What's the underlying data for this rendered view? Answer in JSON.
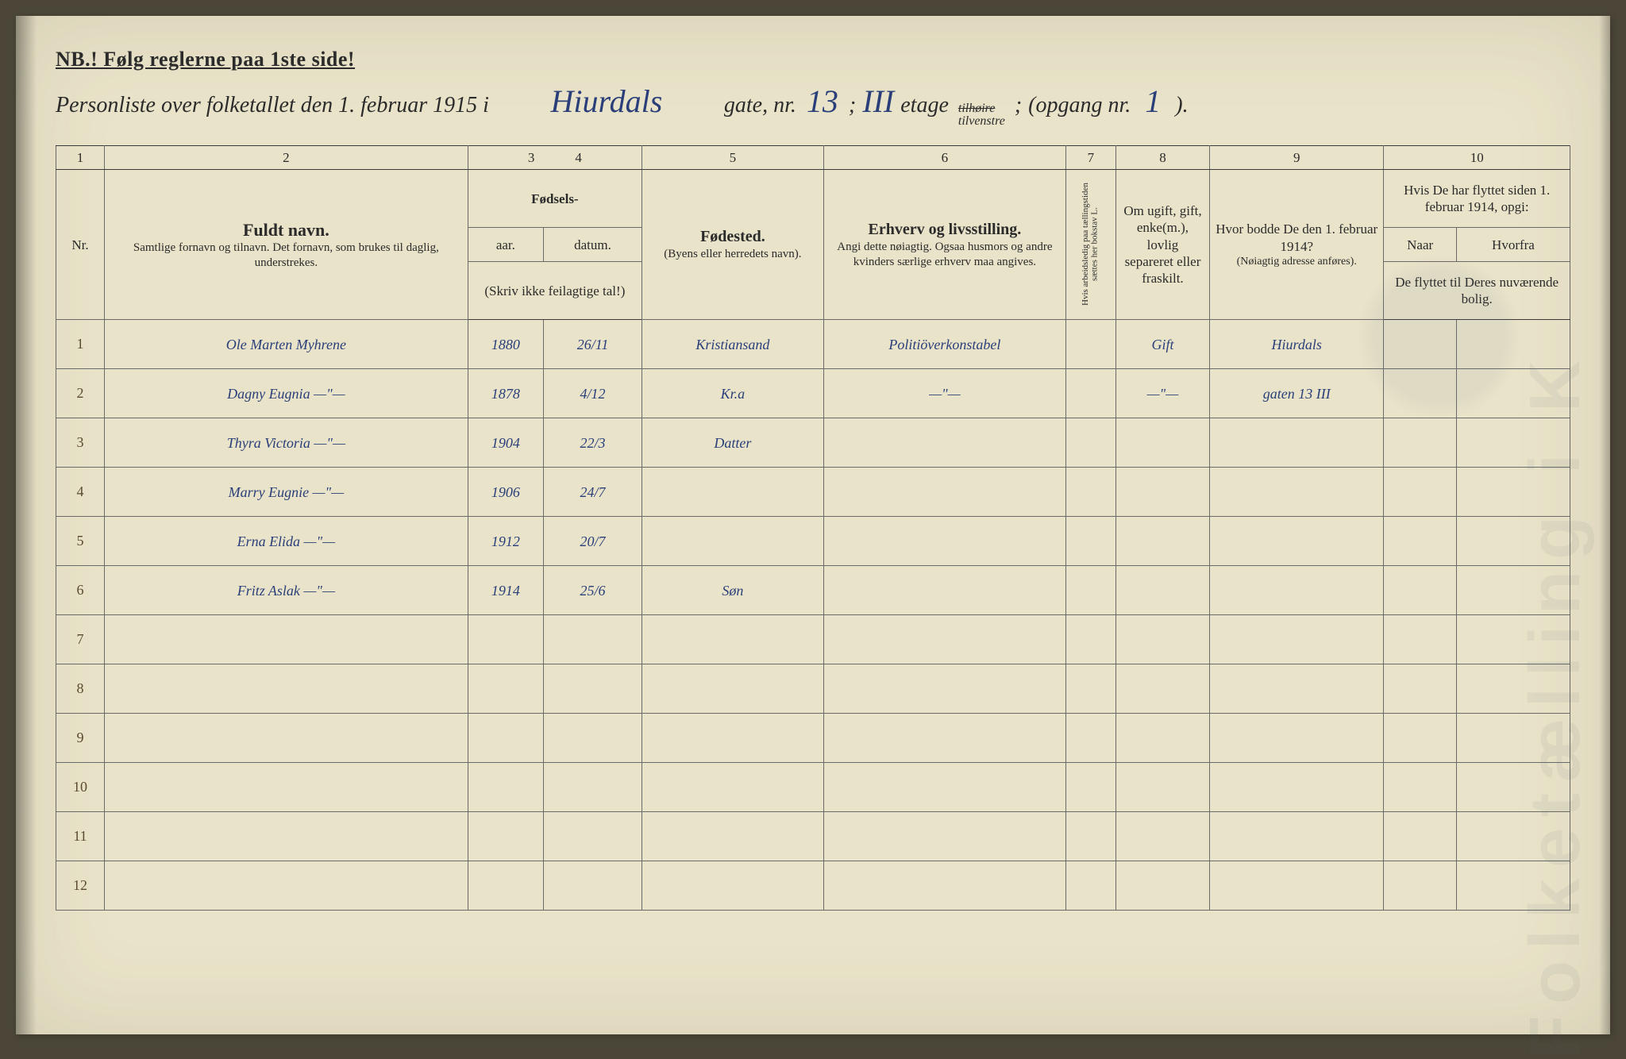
{
  "colors": {
    "page_bg": "#e9e3c9",
    "outer_bg": "#4b4638",
    "ink_print": "#2b2b2b",
    "ink_hand": "#2a3f7a",
    "rule_line": "#6a6a6a",
    "rule_line_thick": "#3a3a3a",
    "watermark": "rgba(90,100,120,0.08)",
    "seal": "rgba(90,100,120,0.07)",
    "binding": "linear-gradient(to right, rgba(0,0,0,0.35), rgba(0,0,0,0))",
    "edge": "linear-gradient(to left, rgba(0,0,0,0.25), rgba(0,0,0,0))"
  },
  "header": {
    "nb": "NB.! Følg reglerne paa 1ste side!",
    "line_prefix": "Personliste over folketallet den 1. februar 1915 i",
    "street": "Hiurdals",
    "gate_label": "gate, nr.",
    "gate_nr": "13",
    "semicolon1": ";",
    "etage": "III",
    "etage_label": "etage",
    "side_top": "tilhøire",
    "side_bottom": "tilvenstre",
    "semicolon2": ";",
    "opgang_label": "(opgang nr.",
    "opgang": "1",
    "close": ")."
  },
  "columns": {
    "numbers": [
      "1",
      "2",
      "3",
      "4",
      "5",
      "6",
      "7",
      "8",
      "9",
      "10"
    ],
    "nr": "Nr.",
    "fuldt_navn": "Fuldt navn.",
    "fuldt_navn_sub": "Samtlige fornavn og tilnavn. Det fornavn, som brukes til daglig, understrekes.",
    "fodsels": "Fødsels-",
    "aar": "aar.",
    "datum": "datum.",
    "fodsels_note": "(Skriv ikke feilagtige tal!)",
    "fodested": "Fødested.",
    "fodested_sub": "(Byens eller herredets navn).",
    "erhverv": "Erhverv og livsstilling.",
    "erhverv_sub": "Angi dette nøiagtig. Ogsaa husmors og andre kvinders særlige erhverv maa angives.",
    "arbeidsledig": "Hvis arbeidsledig paa tællingstiden sættes her bokstav L.",
    "sivil": "Om ugift, gift, enke(m.), lovlig separeret eller fraskilt.",
    "bodde": "Hvor bodde De den 1. februar 1914?",
    "bodde_sub": "(Nøiagtig adresse anføres).",
    "flyttet": "Hvis De har flyttet siden 1. februar 1914, opgi:",
    "naar": "Naar",
    "hvorfra": "Hvorfra",
    "flyttet_sub": "De flyttet til Deres nuværende bolig."
  },
  "rows": [
    {
      "nr": "1",
      "navn": "Ole Marten Myhrene",
      "aar": "1880",
      "datum": "26/11",
      "sted": "Kristiansand",
      "erhverv": "Politiöverkonstabel",
      "arb": "",
      "sivil": "Gift",
      "bodde": "Hiurdals",
      "naar": "",
      "hvor": ""
    },
    {
      "nr": "2",
      "navn": "Dagny Eugnia   —\"—",
      "aar": "1878",
      "datum": "4/12",
      "sted": "Kr.a",
      "erhverv": "—\"—",
      "arb": "",
      "sivil": "—\"—",
      "bodde": "gaten 13 III",
      "naar": "",
      "hvor": ""
    },
    {
      "nr": "3",
      "navn": "Thyra Victoria —\"—",
      "aar": "1904",
      "datum": "22/3",
      "sted": "Datter",
      "erhverv": "",
      "arb": "",
      "sivil": "",
      "bodde": "",
      "naar": "",
      "hvor": ""
    },
    {
      "nr": "4",
      "navn": "Marry Eugnie —\"—",
      "aar": "1906",
      "datum": "24/7",
      "sted": "",
      "erhverv": "",
      "arb": "",
      "sivil": "",
      "bodde": "",
      "naar": "",
      "hvor": ""
    },
    {
      "nr": "5",
      "navn": "Erna Elida —\"—",
      "aar": "1912",
      "datum": "20/7",
      "sted": "",
      "erhverv": "",
      "arb": "",
      "sivil": "",
      "bodde": "",
      "naar": "",
      "hvor": ""
    },
    {
      "nr": "6",
      "navn": "Fritz Aslak —\"—",
      "aar": "1914",
      "datum": "25/6",
      "sted": "Søn",
      "erhverv": "",
      "arb": "",
      "sivil": "",
      "bodde": "",
      "naar": "",
      "hvor": ""
    },
    {
      "nr": "7",
      "navn": "",
      "aar": "",
      "datum": "",
      "sted": "",
      "erhverv": "",
      "arb": "",
      "sivil": "",
      "bodde": "",
      "naar": "",
      "hvor": ""
    },
    {
      "nr": "8",
      "navn": "",
      "aar": "",
      "datum": "",
      "sted": "",
      "erhverv": "",
      "arb": "",
      "sivil": "",
      "bodde": "",
      "naar": "",
      "hvor": ""
    },
    {
      "nr": "9",
      "navn": "",
      "aar": "",
      "datum": "",
      "sted": "",
      "erhverv": "",
      "arb": "",
      "sivil": "",
      "bodde": "",
      "naar": "",
      "hvor": ""
    },
    {
      "nr": "10",
      "navn": "",
      "aar": "",
      "datum": "",
      "sted": "",
      "erhverv": "",
      "arb": "",
      "sivil": "",
      "bodde": "",
      "naar": "",
      "hvor": ""
    },
    {
      "nr": "11",
      "navn": "",
      "aar": "",
      "datum": "",
      "sted": "",
      "erhverv": "",
      "arb": "",
      "sivil": "",
      "bodde": "",
      "naar": "",
      "hvor": ""
    },
    {
      "nr": "12",
      "navn": "",
      "aar": "",
      "datum": "",
      "sted": "",
      "erhverv": "",
      "arb": "",
      "sivil": "",
      "bodde": "",
      "naar": "",
      "hvor": ""
    }
  ],
  "watermark_text": "Folketælling i K"
}
